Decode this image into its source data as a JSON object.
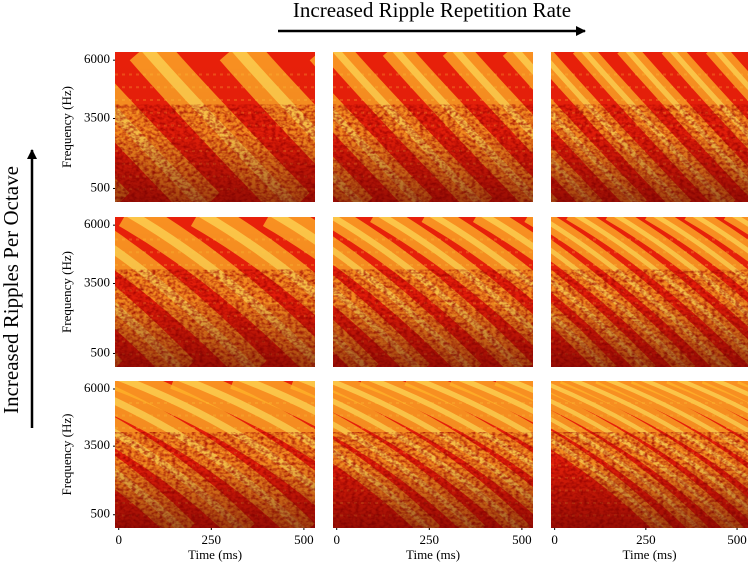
{
  "chart_data": {
    "type": "spectrogram",
    "top_label": "Increased Ripple Repetition Rate",
    "left_label": "Increased Ripples Per Octave",
    "y_axis_label": "Frequency (Hz)",
    "x_axis_label": "Time (ms)",
    "xlim": [
      -10,
      530
    ],
    "xticks": [
      0,
      250,
      500
    ],
    "ylim": [
      -80,
      6350
    ],
    "yticks": [
      500,
      3500,
      6000
    ]
  }
}
